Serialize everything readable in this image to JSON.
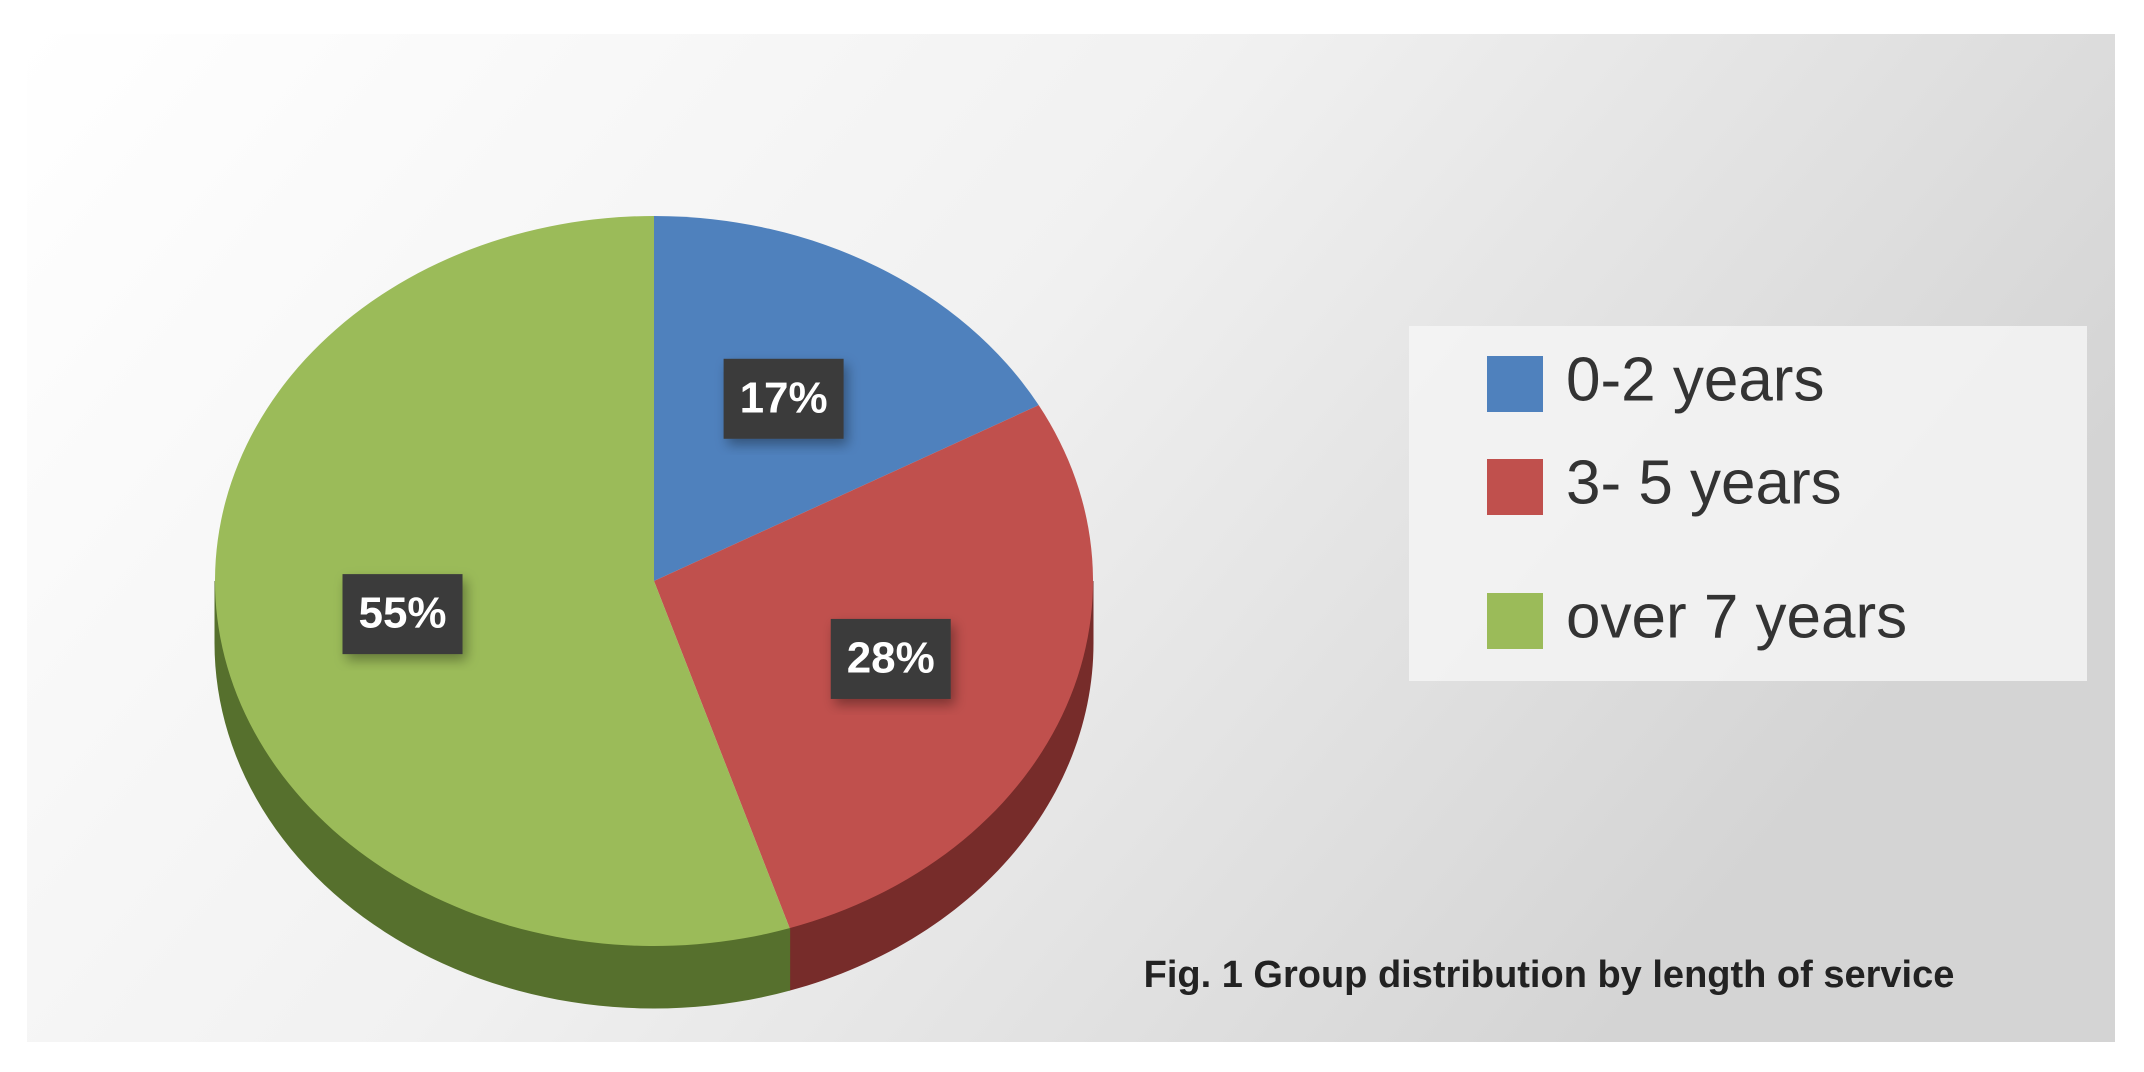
{
  "chart_data": {
    "type": "pie",
    "title": "Fig. 1 Group distribution by length of service",
    "categories": [
      "0-2 years",
      "3- 5 years",
      "over 7 years"
    ],
    "values": [
      17,
      28,
      55
    ],
    "value_labels": [
      "17%",
      "28%",
      "55%"
    ],
    "colors": [
      "#4f81bd",
      "#c0504d",
      "#9bbb59"
    ],
    "side_colors": [
      "#2c4d75",
      "#772c2a",
      "#56702d"
    ],
    "legend": "right"
  }
}
